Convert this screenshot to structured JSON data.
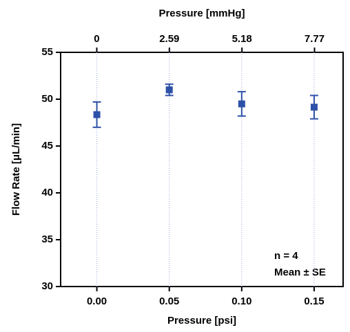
{
  "chart_data": {
    "type": "scatter",
    "x_label": "Pressure [psi]",
    "x2_label": "Pressure [mmHg]",
    "y_label": "Flow Rate [μL/min]",
    "annotations": [
      "n = 4",
      "Mean ± SE"
    ],
    "x": [
      0,
      0.05,
      0.1,
      0.15
    ],
    "series": [
      {
        "color": "#2d50a8",
        "values": [
          48.35,
          51.0,
          49.5,
          49.15
        ],
        "errors": [
          1.35,
          0.6,
          1.3,
          1.25
        ]
      }
    ],
    "xlim": [
      -0.025,
      0.17
    ],
    "xticks": [
      {
        "value": 0,
        "label": "0.00"
      },
      {
        "value": 0.05,
        "label": "0.05"
      },
      {
        "value": 0.1,
        "label": "0.10"
      },
      {
        "value": 0.15,
        "label": "0.15"
      }
    ],
    "x2lim": [
      -1.29,
      8.79
    ],
    "x2ticks": [
      0,
      2.59,
      5.18,
      7.77
    ],
    "ylim": [
      30,
      55
    ],
    "yticks": [
      30,
      35,
      40,
      45,
      50,
      55
    ],
    "grid": true,
    "grid_color": "#9aa9e0"
  }
}
